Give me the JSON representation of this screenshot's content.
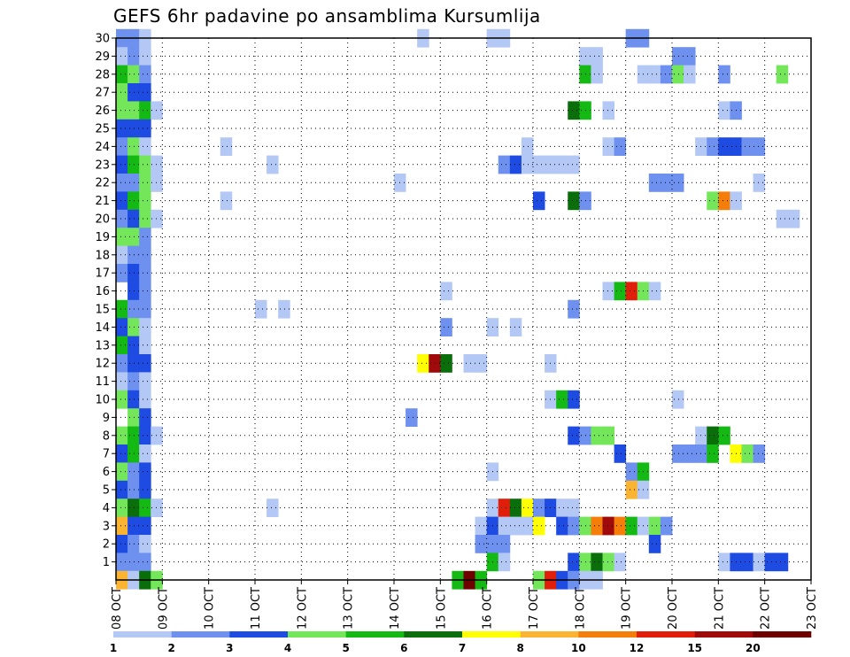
{
  "chart_data": {
    "type": "heatmap",
    "title": "GEFS 6hr padavine po ansamblima Kursumlija",
    "x_tick_labels": [
      "08 OCT",
      "09 OCT",
      "10 OCT",
      "11 OCT",
      "12 OCT",
      "13 OCT",
      "14 OCT",
      "15 OCT",
      "16 OCT",
      "17 OCT",
      "18 OCT",
      "19 OCT",
      "20 OCT",
      "21 OCT",
      "22 OCT",
      "23 OCT"
    ],
    "x_range_days": [
      0,
      15
    ],
    "y_tick_labels": [
      "1",
      "2",
      "3",
      "4",
      "5",
      "6",
      "7",
      "8",
      "9",
      "10",
      "11",
      "12",
      "13",
      "14",
      "15",
      "16",
      "17",
      "18",
      "19",
      "20",
      "21",
      "22",
      "23",
      "24",
      "25",
      "26",
      "27",
      "28",
      "29",
      "30"
    ],
    "y_range": [
      0,
      30
    ],
    "grid": "dotted",
    "colorbar": {
      "labels": [
        "1",
        "2",
        "3",
        "4",
        "5",
        "6",
        "7",
        "8",
        "10",
        "12",
        "15",
        "20"
      ],
      "colors": [
        "#b4c8f5",
        "#6e91f0",
        "#1e4be1",
        "#73e65a",
        "#14b914",
        "#0a6e0a",
        "#ffff00",
        "#fab432",
        "#f57d0a",
        "#e11e0a",
        "#a00a0a",
        "#6e0000"
      ]
    },
    "cells": [
      {
        "m": 30,
        "t": 0.5,
        "c": 2
      },
      {
        "m": 30,
        "t": 1.5,
        "c": 2
      },
      {
        "m": 30,
        "t": 2.5,
        "c": 1
      },
      {
        "m": 30,
        "t": 26.5,
        "c": 1
      },
      {
        "m": 30,
        "t": 32.5,
        "c": 1
      },
      {
        "m": 30,
        "t": 33.5,
        "c": 1
      },
      {
        "m": 30,
        "t": 44.5,
        "c": 2
      },
      {
        "m": 30,
        "t": 45.5,
        "c": 2
      },
      {
        "m": 29,
        "t": 0.5,
        "c": 1
      },
      {
        "m": 29,
        "t": 1.5,
        "c": 2
      },
      {
        "m": 29,
        "t": 2.5,
        "c": 1
      },
      {
        "m": 29,
        "t": 40.5,
        "c": 1
      },
      {
        "m": 29,
        "t": 41.5,
        "c": 1
      },
      {
        "m": 29,
        "t": 48.5,
        "c": 2
      },
      {
        "m": 29,
        "t": 49.5,
        "c": 2
      },
      {
        "m": 28,
        "t": 0.5,
        "c": 5
      },
      {
        "m": 28,
        "t": 1.5,
        "c": 4
      },
      {
        "m": 28,
        "t": 2.5,
        "c": 2
      },
      {
        "m": 28,
        "t": 40.5,
        "c": 5
      },
      {
        "m": 28,
        "t": 41.5,
        "c": 1
      },
      {
        "m": 28,
        "t": 45.5,
        "c": 1
      },
      {
        "m": 28,
        "t": 46.5,
        "c": 1
      },
      {
        "m": 28,
        "t": 47.5,
        "c": 2
      },
      {
        "m": 28,
        "t": 48.5,
        "c": 4
      },
      {
        "m": 28,
        "t": 49.5,
        "c": 1
      },
      {
        "m": 28,
        "t": 52.5,
        "c": 2
      },
      {
        "m": 28,
        "t": 57.5,
        "c": 4
      },
      {
        "m": 27,
        "t": 0.5,
        "c": 4
      },
      {
        "m": 27,
        "t": 1.5,
        "c": 3
      },
      {
        "m": 27,
        "t": 2.5,
        "c": 3
      },
      {
        "m": 26,
        "t": 0.5,
        "c": 4
      },
      {
        "m": 26,
        "t": 1.5,
        "c": 4
      },
      {
        "m": 26,
        "t": 2.5,
        "c": 5
      },
      {
        "m": 26,
        "t": 3.5,
        "c": 1
      },
      {
        "m": 26,
        "t": 39.5,
        "c": 6
      },
      {
        "m": 26,
        "t": 40.5,
        "c": 5
      },
      {
        "m": 26,
        "t": 42.5,
        "c": 1
      },
      {
        "m": 26,
        "t": 52.5,
        "c": 1
      },
      {
        "m": 26,
        "t": 53.5,
        "c": 2
      },
      {
        "m": 25,
        "t": 0.5,
        "c": 3
      },
      {
        "m": 25,
        "t": 1.5,
        "c": 3
      },
      {
        "m": 25,
        "t": 2.5,
        "c": 3
      },
      {
        "m": 24,
        "t": 0.5,
        "c": 2
      },
      {
        "m": 24,
        "t": 1.5,
        "c": 4
      },
      {
        "m": 24,
        "t": 2.5,
        "c": 1
      },
      {
        "m": 24,
        "t": 9.5,
        "c": 1
      },
      {
        "m": 24,
        "t": 35.5,
        "c": 1
      },
      {
        "m": 24,
        "t": 42.5,
        "c": 1
      },
      {
        "m": 24,
        "t": 43.5,
        "c": 2
      },
      {
        "m": 24,
        "t": 50.5,
        "c": 1
      },
      {
        "m": 24,
        "t": 51.5,
        "c": 2
      },
      {
        "m": 24,
        "t": 52.5,
        "c": 3
      },
      {
        "m": 24,
        "t": 53.5,
        "c": 3
      },
      {
        "m": 24,
        "t": 54.5,
        "c": 2
      },
      {
        "m": 24,
        "t": 55.5,
        "c": 2
      },
      {
        "m": 23,
        "t": 0.5,
        "c": 3
      },
      {
        "m": 23,
        "t": 1.5,
        "c": 5
      },
      {
        "m": 23,
        "t": 2.5,
        "c": 4
      },
      {
        "m": 23,
        "t": 3.5,
        "c": 1
      },
      {
        "m": 23,
        "t": 13.5,
        "c": 1
      },
      {
        "m": 23,
        "t": 33.5,
        "c": 2
      },
      {
        "m": 23,
        "t": 34.5,
        "c": 3
      },
      {
        "m": 23,
        "t": 35.5,
        "c": 1
      },
      {
        "m": 23,
        "t": 36.5,
        "c": 1
      },
      {
        "m": 23,
        "t": 37.5,
        "c": 1
      },
      {
        "m": 23,
        "t": 38.5,
        "c": 1
      },
      {
        "m": 23,
        "t": 39.5,
        "c": 1
      },
      {
        "m": 22,
        "t": 0.5,
        "c": 2
      },
      {
        "m": 22,
        "t": 1.5,
        "c": 2
      },
      {
        "m": 22,
        "t": 2.5,
        "c": 4
      },
      {
        "m": 22,
        "t": 3.5,
        "c": 1
      },
      {
        "m": 22,
        "t": 24.5,
        "c": 1
      },
      {
        "m": 22,
        "t": 46.5,
        "c": 2
      },
      {
        "m": 22,
        "t": 47.5,
        "c": 2
      },
      {
        "m": 22,
        "t": 48.5,
        "c": 2
      },
      {
        "m": 22,
        "t": 55.5,
        "c": 1
      },
      {
        "m": 21,
        "t": 0.5,
        "c": 3
      },
      {
        "m": 21,
        "t": 1.5,
        "c": 5
      },
      {
        "m": 21,
        "t": 2.5,
        "c": 4
      },
      {
        "m": 21,
        "t": 9.5,
        "c": 1
      },
      {
        "m": 21,
        "t": 36.5,
        "c": 3
      },
      {
        "m": 21,
        "t": 39.5,
        "c": 6
      },
      {
        "m": 21,
        "t": 40.5,
        "c": 2
      },
      {
        "m": 21,
        "t": 51.5,
        "c": 4
      },
      {
        "m": 21,
        "t": 52.5,
        "c": 9
      },
      {
        "m": 21,
        "t": 53.5,
        "c": 1
      },
      {
        "m": 20,
        "t": 0.5,
        "c": 2
      },
      {
        "m": 20,
        "t": 1.5,
        "c": 3
      },
      {
        "m": 20,
        "t": 2.5,
        "c": 4
      },
      {
        "m": 20,
        "t": 3.5,
        "c": 1
      },
      {
        "m": 20,
        "t": 57.5,
        "c": 1
      },
      {
        "m": 20,
        "t": 58.5,
        "c": 1
      },
      {
        "m": 19,
        "t": 0.5,
        "c": 4
      },
      {
        "m": 19,
        "t": 1.5,
        "c": 4
      },
      {
        "m": 19,
        "t": 2.5,
        "c": 2
      },
      {
        "m": 18,
        "t": 0.5,
        "c": 1
      },
      {
        "m": 18,
        "t": 1.5,
        "c": 2
      },
      {
        "m": 18,
        "t": 2.5,
        "c": 2
      },
      {
        "m": 17,
        "t": 0.5,
        "c": 2
      },
      {
        "m": 17,
        "t": 1.5,
        "c": 3
      },
      {
        "m": 17,
        "t": 2.5,
        "c": 2
      },
      {
        "m": 16,
        "t": 1.5,
        "c": 3
      },
      {
        "m": 16,
        "t": 2.5,
        "c": 2
      },
      {
        "m": 16,
        "t": 28.5,
        "c": 1
      },
      {
        "m": 16,
        "t": 42.5,
        "c": 1
      },
      {
        "m": 16,
        "t": 43.5,
        "c": 5
      },
      {
        "m": 16,
        "t": 44.5,
        "c": 10
      },
      {
        "m": 16,
        "t": 45.5,
        "c": 4
      },
      {
        "m": 16,
        "t": 46.5,
        "c": 1
      },
      {
        "m": 15,
        "t": 0.5,
        "c": 5
      },
      {
        "m": 15,
        "t": 1.5,
        "c": 2
      },
      {
        "m": 15,
        "t": 2.5,
        "c": 2
      },
      {
        "m": 15,
        "t": 12.5,
        "c": 1
      },
      {
        "m": 15,
        "t": 14.5,
        "c": 1
      },
      {
        "m": 15,
        "t": 39.5,
        "c": 2
      },
      {
        "m": 14,
        "t": 0.5,
        "c": 3
      },
      {
        "m": 14,
        "t": 1.5,
        "c": 4
      },
      {
        "m": 14,
        "t": 2.5,
        "c": 1
      },
      {
        "m": 14,
        "t": 28.5,
        "c": 2
      },
      {
        "m": 14,
        "t": 32.5,
        "c": 1
      },
      {
        "m": 14,
        "t": 34.5,
        "c": 1
      },
      {
        "m": 13,
        "t": 0.5,
        "c": 5
      },
      {
        "m": 13,
        "t": 1.5,
        "c": 3
      },
      {
        "m": 13,
        "t": 2.5,
        "c": 1
      },
      {
        "m": 12,
        "t": 0.5,
        "c": 2
      },
      {
        "m": 12,
        "t": 1.5,
        "c": 3
      },
      {
        "m": 12,
        "t": 2.5,
        "c": 3
      },
      {
        "m": 12,
        "t": 26.5,
        "c": 7
      },
      {
        "m": 12,
        "t": 27.5,
        "c": 11
      },
      {
        "m": 12,
        "t": 28.5,
        "c": 6
      },
      {
        "m": 12,
        "t": 30.5,
        "c": 1
      },
      {
        "m": 12,
        "t": 31.5,
        "c": 1
      },
      {
        "m": 12,
        "t": 37.5,
        "c": 1
      },
      {
        "m": 11,
        "t": 0.5,
        "c": 1
      },
      {
        "m": 11,
        "t": 1.5,
        "c": 2
      },
      {
        "m": 11,
        "t": 2.5,
        "c": 1
      },
      {
        "m": 10,
        "t": 0.5,
        "c": 4
      },
      {
        "m": 10,
        "t": 1.5,
        "c": 3
      },
      {
        "m": 10,
        "t": 2.5,
        "c": 1
      },
      {
        "m": 10,
        "t": 37.5,
        "c": 1
      },
      {
        "m": 10,
        "t": 38.5,
        "c": 5
      },
      {
        "m": 10,
        "t": 39.5,
        "c": 3
      },
      {
        "m": 10,
        "t": 48.5,
        "c": 1
      },
      {
        "m": 9,
        "t": 1.5,
        "c": 4
      },
      {
        "m": 9,
        "t": 2.5,
        "c": 3
      },
      {
        "m": 9,
        "t": 25.5,
        "c": 2
      },
      {
        "m": 8,
        "t": 0.5,
        "c": 4
      },
      {
        "m": 8,
        "t": 1.5,
        "c": 5
      },
      {
        "m": 8,
        "t": 2.5,
        "c": 3
      },
      {
        "m": 8,
        "t": 3.5,
        "c": 1
      },
      {
        "m": 8,
        "t": 39.5,
        "c": 3
      },
      {
        "m": 8,
        "t": 40.5,
        "c": 2
      },
      {
        "m": 8,
        "t": 41.5,
        "c": 4
      },
      {
        "m": 8,
        "t": 42.5,
        "c": 4
      },
      {
        "m": 8,
        "t": 50.5,
        "c": 1
      },
      {
        "m": 8,
        "t": 51.5,
        "c": 6
      },
      {
        "m": 8,
        "t": 52.5,
        "c": 5
      },
      {
        "m": 7,
        "t": 0.5,
        "c": 3
      },
      {
        "m": 7,
        "t": 1.5,
        "c": 5
      },
      {
        "m": 7,
        "t": 2.5,
        "c": 1
      },
      {
        "m": 7,
        "t": 43.5,
        "c": 3
      },
      {
        "m": 7,
        "t": 48.5,
        "c": 2
      },
      {
        "m": 7,
        "t": 49.5,
        "c": 2
      },
      {
        "m": 7,
        "t": 50.5,
        "c": 2
      },
      {
        "m": 7,
        "t": 51.5,
        "c": 5
      },
      {
        "m": 7,
        "t": 53.5,
        "c": 7
      },
      {
        "m": 7,
        "t": 54.5,
        "c": 4
      },
      {
        "m": 7,
        "t": 55.5,
        "c": 2
      },
      {
        "m": 6,
        "t": 0.5,
        "c": 4
      },
      {
        "m": 6,
        "t": 1.5,
        "c": 2
      },
      {
        "m": 6,
        "t": 2.5,
        "c": 3
      },
      {
        "m": 6,
        "t": 32.5,
        "c": 1
      },
      {
        "m": 6,
        "t": 44.5,
        "c": 2
      },
      {
        "m": 6,
        "t": 45.5,
        "c": 5
      },
      {
        "m": 5,
        "t": 0.5,
        "c": 3
      },
      {
        "m": 5,
        "t": 1.5,
        "c": 2
      },
      {
        "m": 5,
        "t": 2.5,
        "c": 3
      },
      {
        "m": 5,
        "t": 44.5,
        "c": 8
      },
      {
        "m": 5,
        "t": 45.5,
        "c": 1
      },
      {
        "m": 4,
        "t": 0.5,
        "c": 4
      },
      {
        "m": 4,
        "t": 1.5,
        "c": 6
      },
      {
        "m": 4,
        "t": 2.5,
        "c": 5
      },
      {
        "m": 4,
        "t": 3.5,
        "c": 1
      },
      {
        "m": 4,
        "t": 13.5,
        "c": 1
      },
      {
        "m": 4,
        "t": 32.5,
        "c": 1
      },
      {
        "m": 4,
        "t": 33.5,
        "c": 10
      },
      {
        "m": 4,
        "t": 34.5,
        "c": 6
      },
      {
        "m": 4,
        "t": 35.5,
        "c": 7
      },
      {
        "m": 4,
        "t": 36.5,
        "c": 2
      },
      {
        "m": 4,
        "t": 37.5,
        "c": 3
      },
      {
        "m": 4,
        "t": 38.5,
        "c": 1
      },
      {
        "m": 4,
        "t": 39.5,
        "c": 1
      },
      {
        "m": 3,
        "t": 0.5,
        "c": 8
      },
      {
        "m": 3,
        "t": 1.5,
        "c": 3
      },
      {
        "m": 3,
        "t": 2.5,
        "c": 3
      },
      {
        "m": 3,
        "t": 31.5,
        "c": 1
      },
      {
        "m": 3,
        "t": 32.5,
        "c": 3
      },
      {
        "m": 3,
        "t": 33.5,
        "c": 1
      },
      {
        "m": 3,
        "t": 34.5,
        "c": 1
      },
      {
        "m": 3,
        "t": 35.5,
        "c": 1
      },
      {
        "m": 3,
        "t": 36.5,
        "c": 7
      },
      {
        "m": 3,
        "t": 38.5,
        "c": 3
      },
      {
        "m": 3,
        "t": 39.5,
        "c": 2
      },
      {
        "m": 3,
        "t": 40.5,
        "c": 4
      },
      {
        "m": 3,
        "t": 41.5,
        "c": 9
      },
      {
        "m": 3,
        "t": 42.5,
        "c": 11
      },
      {
        "m": 3,
        "t": 43.5,
        "c": 9
      },
      {
        "m": 3,
        "t": 44.5,
        "c": 5
      },
      {
        "m": 3,
        "t": 45.5,
        "c": 1
      },
      {
        "m": 3,
        "t": 46.5,
        "c": 4
      },
      {
        "m": 3,
        "t": 47.5,
        "c": 2
      },
      {
        "m": 2,
        "t": 0.5,
        "c": 3
      },
      {
        "m": 2,
        "t": 1.5,
        "c": 2
      },
      {
        "m": 2,
        "t": 2.5,
        "c": 1
      },
      {
        "m": 2,
        "t": 31.5,
        "c": 2
      },
      {
        "m": 2,
        "t": 32.5,
        "c": 2
      },
      {
        "m": 2,
        "t": 33.5,
        "c": 2
      },
      {
        "m": 2,
        "t": 46.5,
        "c": 3
      },
      {
        "m": 1,
        "t": 0.5,
        "c": 2
      },
      {
        "m": 1,
        "t": 1.5,
        "c": 2
      },
      {
        "m": 1,
        "t": 2.5,
        "c": 2
      },
      {
        "m": 1,
        "t": 32.5,
        "c": 5
      },
      {
        "m": 1,
        "t": 33.5,
        "c": 1
      },
      {
        "m": 1,
        "t": 39.5,
        "c": 3
      },
      {
        "m": 1,
        "t": 40.5,
        "c": 4
      },
      {
        "m": 1,
        "t": 41.5,
        "c": 6
      },
      {
        "m": 1,
        "t": 42.5,
        "c": 4
      },
      {
        "m": 1,
        "t": 43.5,
        "c": 1
      },
      {
        "m": 1,
        "t": 52.5,
        "c": 1
      },
      {
        "m": 1,
        "t": 53.5,
        "c": 3
      },
      {
        "m": 1,
        "t": 54.5,
        "c": 3
      },
      {
        "m": 1,
        "t": 55.5,
        "c": 1
      },
      {
        "m": 1,
        "t": 56.5,
        "c": 3
      },
      {
        "m": 1,
        "t": 57.5,
        "c": 3
      },
      {
        "m": 0,
        "t": 0.5,
        "c": 8
      },
      {
        "m": 0,
        "t": 1.5,
        "c": 1
      },
      {
        "m": 0,
        "t": 2.5,
        "c": 6
      },
      {
        "m": 0,
        "t": 3.5,
        "c": 4
      },
      {
        "m": 0,
        "t": 29.5,
        "c": 5
      },
      {
        "m": 0,
        "t": 30.5,
        "c": 12
      },
      {
        "m": 0,
        "t": 31.5,
        "c": 5
      },
      {
        "m": 0,
        "t": 36.5,
        "c": 4
      },
      {
        "m": 0,
        "t": 37.5,
        "c": 10
      },
      {
        "m": 0,
        "t": 38.5,
        "c": 3
      },
      {
        "m": 0,
        "t": 39.5,
        "c": 2
      },
      {
        "m": 0,
        "t": 40.5,
        "c": 1
      },
      {
        "m": 0,
        "t": 41.5,
        "c": 1
      }
    ]
  }
}
